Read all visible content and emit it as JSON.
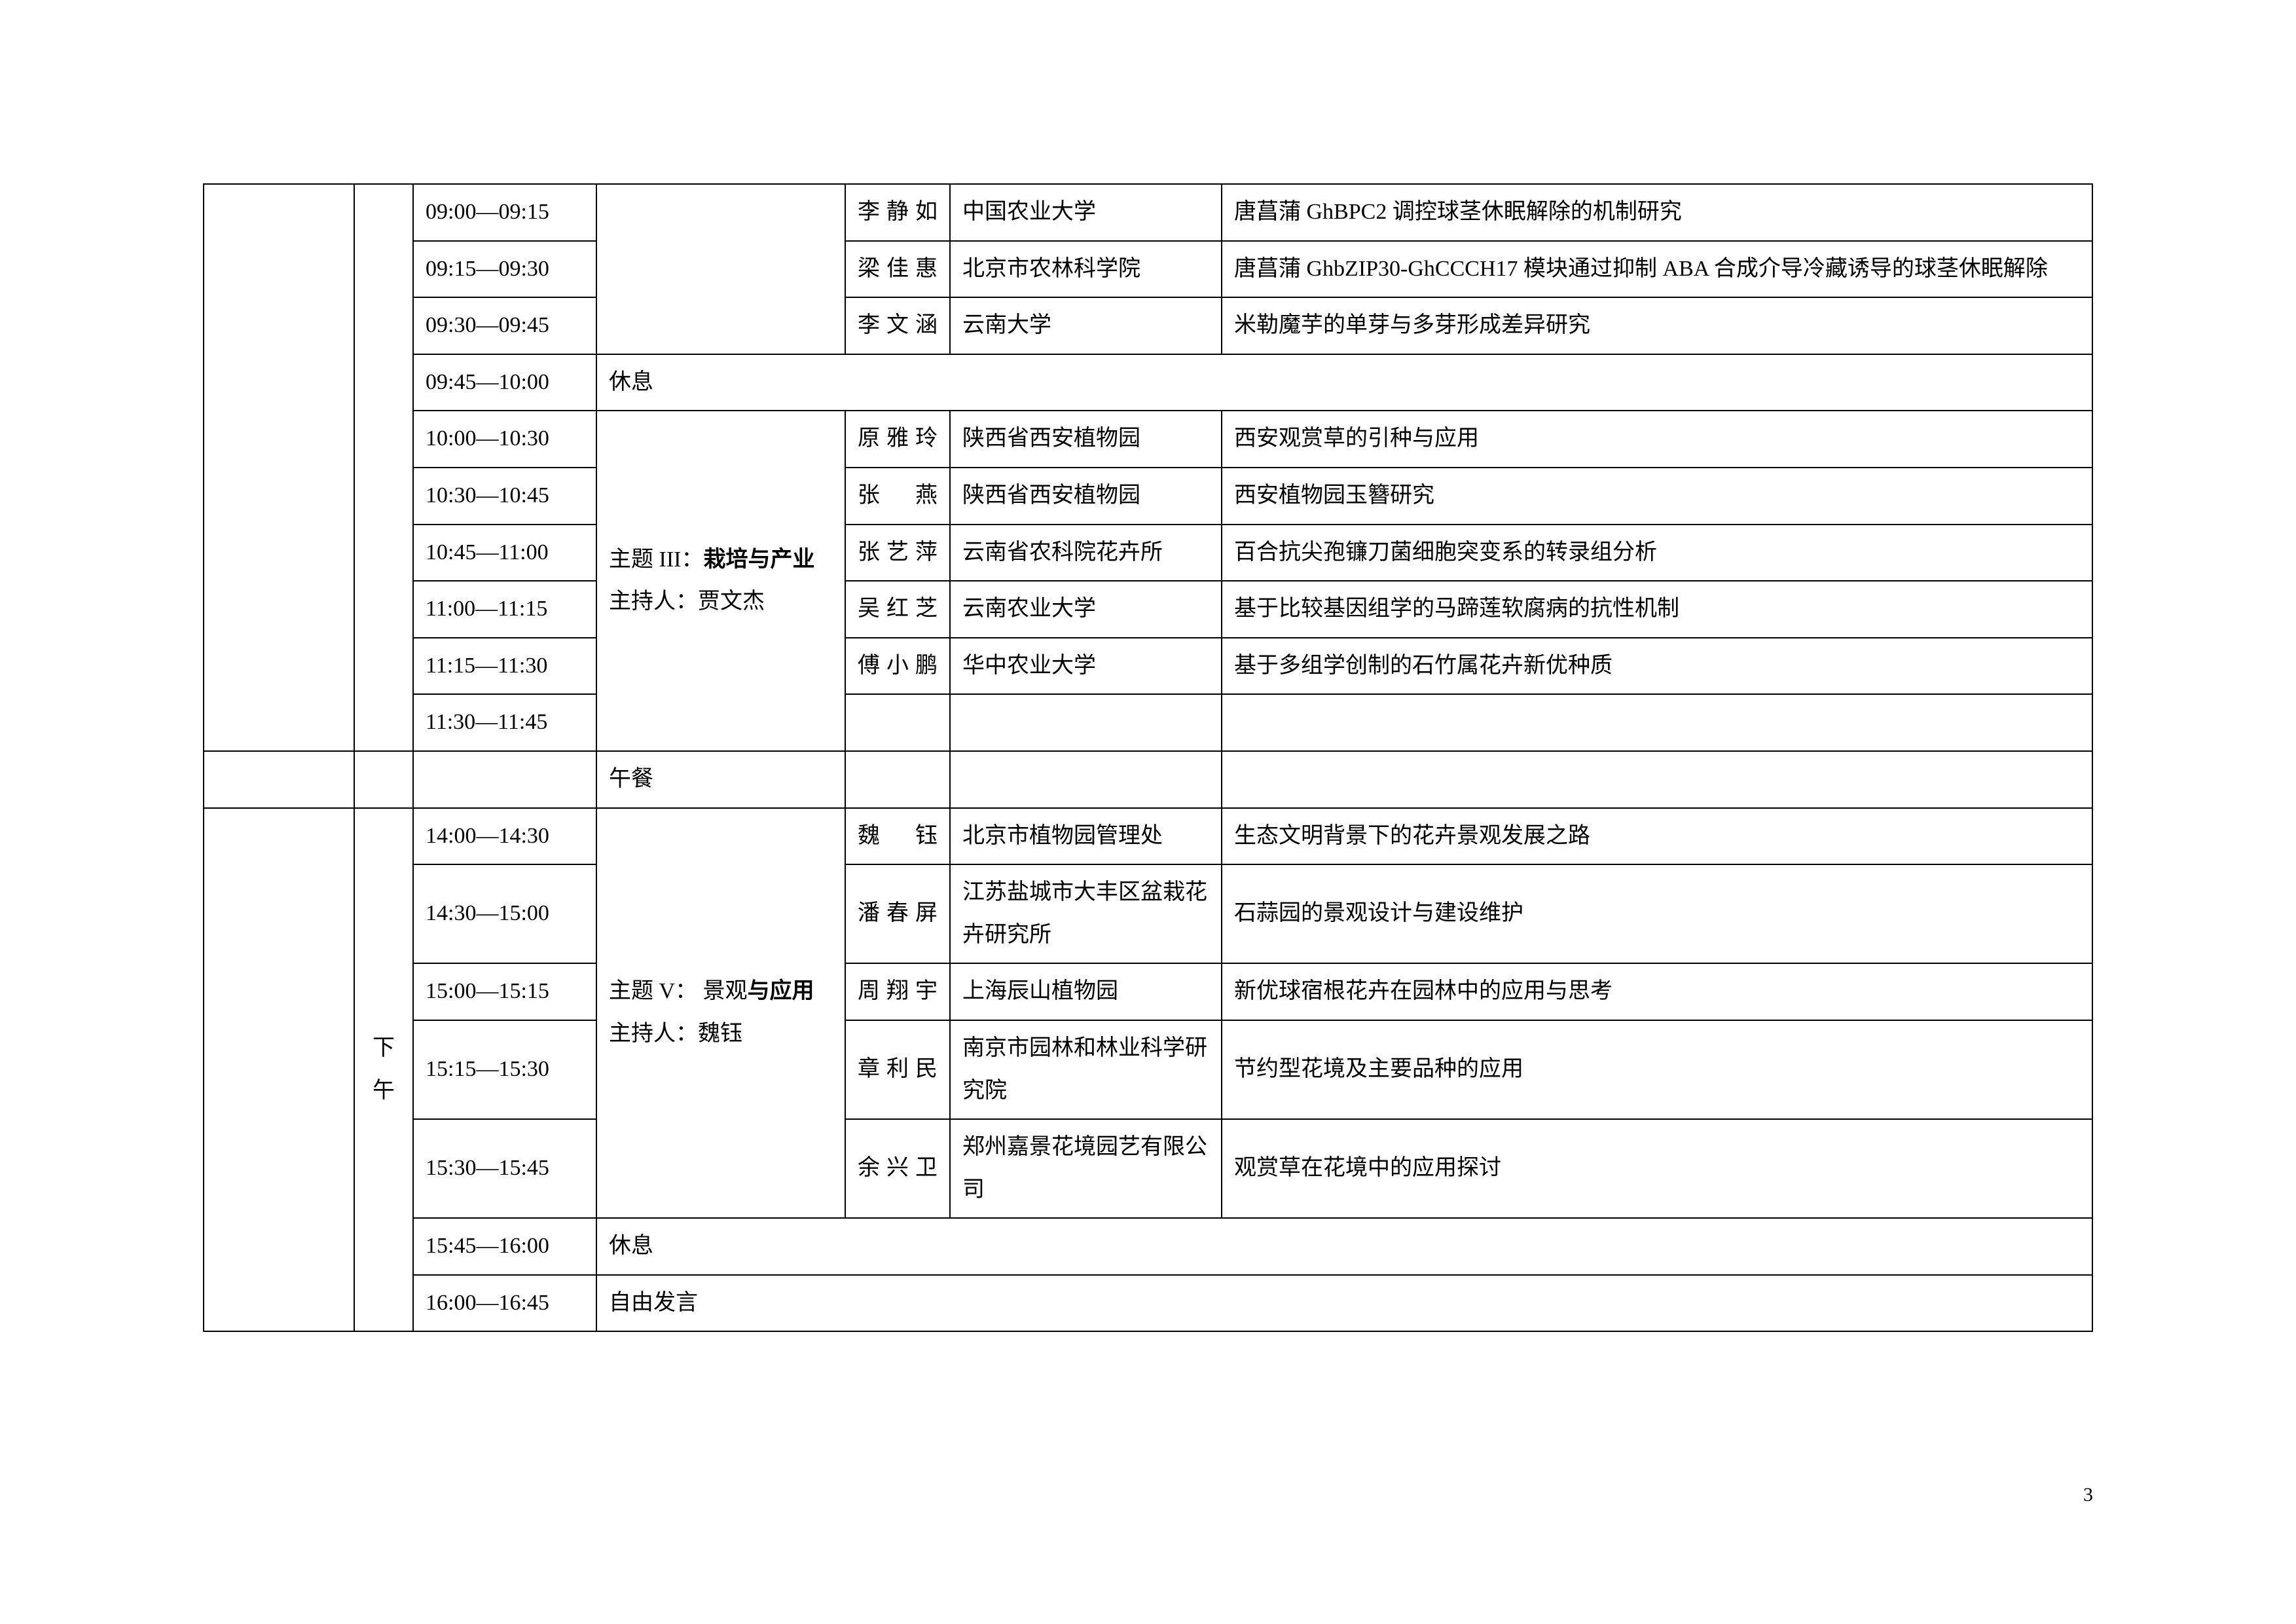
{
  "rows": [
    {
      "time": "09:00—09:15",
      "name": "李静如",
      "org": "中国农业大学",
      "topic": "唐菖蒲 GhBPC2 调控球茎休眠解除的机制研究"
    },
    {
      "time": "09:15—09:30",
      "name": "梁佳惠",
      "org": "北京市农林科学院",
      "topic": "唐菖蒲 GhbZIP30-GhCCCH17 模块通过抑制 ABA 合成介导冷藏诱导的球茎休眠解除"
    },
    {
      "time": "09:30—09:45",
      "name": "李文涵",
      "org": "云南大学",
      "topic": "米勒魔芋的单芽与多芽形成差异研究"
    }
  ],
  "rest1": {
    "time": "09:45—10:00",
    "label": "休息"
  },
  "theme3": {
    "line1_pre": "主题 III：",
    "line1_bold": "栽培与产业",
    "line2": "主持人：贾文杰"
  },
  "block3": [
    {
      "time": "10:00—10:30",
      "name": "原雅玲",
      "org": "陕西省西安植物园",
      "topic": "西安观赏草的引种与应用"
    },
    {
      "time": "10:30—10:45",
      "name": "张　燕",
      "org": "陕西省西安植物园",
      "topic": "西安植物园玉簪研究"
    },
    {
      "time": "10:45—11:00",
      "name": "张艺萍",
      "org": "云南省农科院花卉所",
      "topic": "百合抗尖孢镰刀菌细胞突变系的转录组分析"
    },
    {
      "time": "11:00—11:15",
      "name": "吴红芝",
      "org": "云南农业大学",
      "topic": "基于比较基因组学的马蹄莲软腐病的抗性机制"
    },
    {
      "time": "11:15—11:30",
      "name": "傅小鹏",
      "org": "华中农业大学",
      "topic": "基于多组学创制的石竹属花卉新优种质"
    },
    {
      "time": "11:30—11:45",
      "name": "",
      "org": "",
      "topic": ""
    }
  ],
  "lunch": "午餐",
  "afternoon_label": "下午",
  "theme5": {
    "line1_pre": "主题 V： 景观",
    "line1_bold": "与应用",
    "line2": "主持人：魏钰"
  },
  "block5": [
    {
      "time": "14:00—14:30",
      "name": "魏　钰",
      "org": "北京市植物园管理处",
      "topic": "生态文明背景下的花卉景观发展之路"
    },
    {
      "time": "14:30—15:00",
      "name": "潘春屏",
      "org": "江苏盐城市大丰区盆栽花卉研究所",
      "topic": "石蒜园的景观设计与建设维护"
    },
    {
      "time": "15:00—15:15",
      "name": "周翔宇",
      "org": "上海辰山植物园",
      "topic": "新优球宿根花卉在园林中的应用与思考"
    },
    {
      "time": "15:15—15:30",
      "name": "章利民",
      "org": "南京市园林和林业科学研究院",
      "topic": "节约型花境及主要品种的应用"
    },
    {
      "time": "15:30—15:45",
      "name": "余兴卫",
      "org": "郑州嘉景花境园艺有限公司",
      "topic": "观赏草在花境中的应用探讨"
    }
  ],
  "rest2": {
    "time": "15:45—16:00",
    "label": "休息"
  },
  "free": {
    "time": "16:00—16:45",
    "label": "自由发言"
  },
  "page_number": "3"
}
